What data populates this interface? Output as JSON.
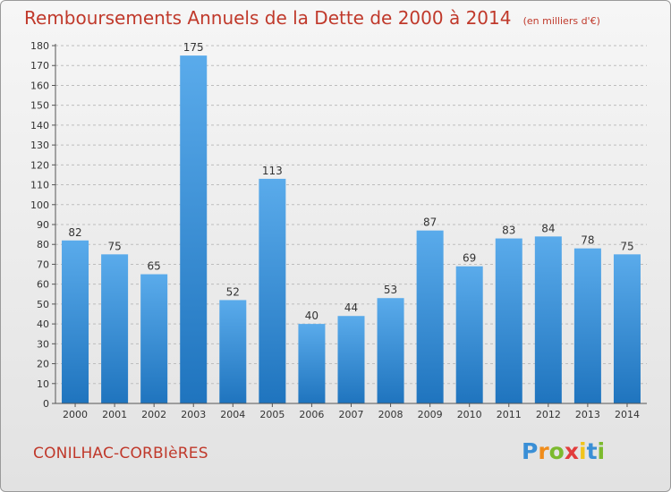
{
  "header": {
    "title": "Remboursements Annuels de la Dette de 2000 à 2014",
    "subtitle": "(en milliers d'€)"
  },
  "footer": {
    "commune": "CONILHAC-CORBIèRES",
    "logo": {
      "text": "Proxiti",
      "letters": [
        "P",
        "r",
        "o",
        "x",
        "i",
        "t",
        "i"
      ]
    }
  },
  "colors": {
    "bar": "#3e97df",
    "bar_dark": "#1f74be",
    "title": "#c0392b"
  },
  "chart_data": {
    "type": "bar",
    "title": "Remboursements Annuels de la Dette de 2000 à 2014",
    "subtitle": "(en milliers d'€)",
    "categories": [
      "2000",
      "2001",
      "2002",
      "2003",
      "2004",
      "2005",
      "2006",
      "2007",
      "2008",
      "2009",
      "2010",
      "2011",
      "2012",
      "2013",
      "2014"
    ],
    "values": [
      82,
      75,
      65,
      175,
      52,
      113,
      40,
      44,
      53,
      87,
      69,
      83,
      84,
      78,
      75
    ],
    "data_labels": [
      "82",
      "75",
      "65",
      "175",
      "52",
      "113",
      "40",
      "44",
      "53",
      "87",
      "69",
      "83",
      "84",
      "78",
      "75"
    ],
    "ylim": [
      0,
      180
    ],
    "yticks": [
      0,
      10,
      20,
      30,
      40,
      50,
      60,
      70,
      80,
      90,
      100,
      110,
      120,
      130,
      140,
      150,
      160,
      170,
      180
    ],
    "xlabel": "",
    "ylabel": "",
    "grid": "horizontal dashed",
    "legend": "none"
  }
}
